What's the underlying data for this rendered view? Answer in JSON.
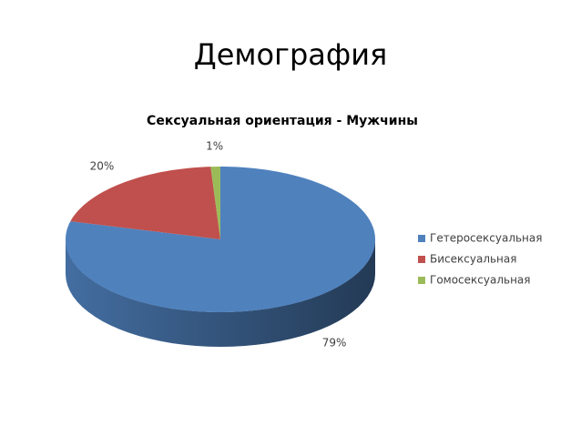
{
  "slide_title": "Демография",
  "chart_data": {
    "type": "pie3d",
    "title": "Сексуальная ориентация - Мужчины",
    "categories": [
      "Гетеросексуальная",
      "Бисексуальная",
      "Гомосексуальная"
    ],
    "values": [
      79,
      20,
      1
    ],
    "value_labels": [
      "79%",
      "20%",
      "1%"
    ],
    "colors": [
      "#4f81bd",
      "#c0504d",
      "#9bbb59"
    ],
    "legend": "right"
  }
}
